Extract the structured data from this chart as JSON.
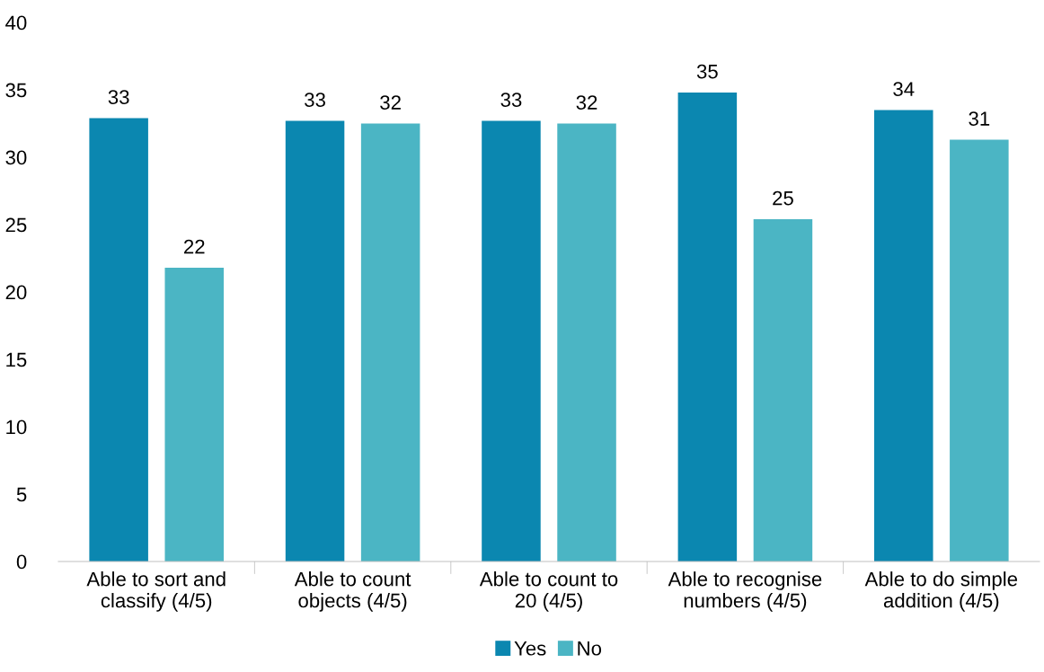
{
  "chart_data": {
    "type": "bar",
    "categories": [
      "Able to sort and\nclassify (4/5)",
      "Able to count\nobjects (4/5)",
      "Able to count to\n20 (4/5)",
      "Able to recognise\nnumbers (4/5)",
      "Able to do simple\naddition (4/5)"
    ],
    "series": [
      {
        "name": "Yes",
        "color": "#0b87b0",
        "values": [
          32.9,
          32.7,
          32.7,
          34.8,
          33.5
        ],
        "value_labels": [
          "33",
          "33",
          "33",
          "35",
          "34"
        ]
      },
      {
        "name": "No",
        "color": "#4bb5c4",
        "values": [
          21.8,
          32.5,
          32.5,
          25.4,
          31.3
        ],
        "value_labels": [
          "22",
          "32",
          "32",
          "25",
          "31"
        ]
      }
    ],
    "ylim": [
      0,
      40
    ],
    "yticks": [
      0,
      5,
      10,
      15,
      20,
      25,
      30,
      35,
      40
    ],
    "grid": false,
    "legend": "bottom"
  }
}
